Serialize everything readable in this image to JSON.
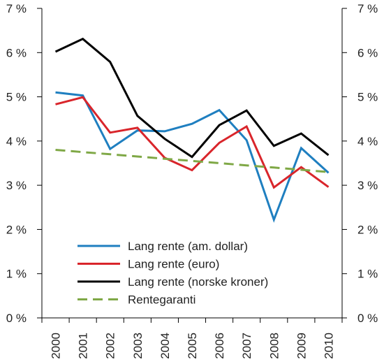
{
  "chart_data": {
    "type": "line",
    "x": [
      "2000",
      "2001",
      "2002",
      "2003",
      "2004",
      "2005",
      "2006",
      "2007",
      "2008",
      "2009",
      "2010"
    ],
    "ylim": [
      0,
      7
    ],
    "yticks": [
      {
        "value": 0,
        "label": "0 %"
      },
      {
        "value": 1,
        "label": "1 %"
      },
      {
        "value": 2,
        "label": "2 %"
      },
      {
        "value": 3,
        "label": "3 %"
      },
      {
        "value": 4,
        "label": "4 %"
      },
      {
        "value": 5,
        "label": "5 %"
      },
      {
        "value": 6,
        "label": "6 %"
      },
      {
        "value": 7,
        "label": "7 %"
      }
    ],
    "grid": false,
    "legend_position": "bottom-center",
    "series": [
      {
        "name": "Lang rente (am. dollar)",
        "color": "#1f7fc0",
        "dash": false,
        "values": [
          5.1,
          5.03,
          3.82,
          4.24,
          4.22,
          4.39,
          4.7,
          4.02,
          2.22,
          3.84,
          3.28
        ]
      },
      {
        "name": "Lang rente (euro)",
        "color": "#d9252b",
        "dash": false,
        "values": [
          4.83,
          4.99,
          4.19,
          4.3,
          3.62,
          3.34,
          3.96,
          4.33,
          2.95,
          3.41,
          2.96
        ]
      },
      {
        "name": "Lang rente (norske kroner)",
        "color": "#000000",
        "dash": false,
        "values": [
          6.02,
          6.31,
          5.79,
          4.57,
          4.05,
          3.64,
          4.36,
          4.69,
          3.89,
          4.17,
          3.68
        ]
      },
      {
        "name": "Rentegaranti",
        "color": "#7fa846",
        "dash": true,
        "values": [
          3.8,
          3.75,
          3.7,
          3.65,
          3.6,
          3.55,
          3.5,
          3.45,
          3.4,
          3.35,
          3.3
        ]
      }
    ]
  }
}
